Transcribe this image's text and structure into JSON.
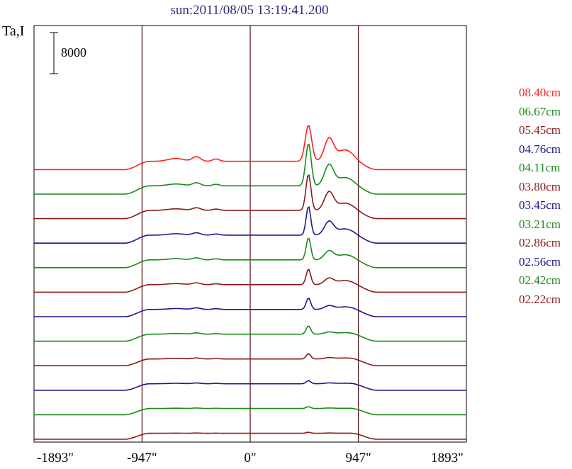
{
  "chart_data": {
    "type": "line",
    "title": "sun:2011/08/05 13:19:41.200",
    "ylabel": "Ta,I",
    "xlabel": "",
    "scale_bar_label": "8000",
    "x_ticks": [
      "-1893\"",
      "-947\"",
      "0\"",
      "947\"",
      "1893\""
    ],
    "x_tick_values": [
      -1893,
      -947,
      0,
      947,
      1893
    ],
    "vertical_lines_at": [
      -947,
      0,
      947
    ],
    "xlim": [
      -1893,
      1893
    ],
    "grid": false,
    "legend_position": "right",
    "series": [
      {
        "name": "08.40cm",
        "color": "#ff2020",
        "offset": 11,
        "disk": 1.6,
        "limbPeak": 0.9,
        "sharpPeak": 7.0,
        "sharpW": 28,
        "broadPeak": 4.3,
        "broadShoulder": 2.2
      },
      {
        "name": "06.67cm",
        "color": "#1a8a1a",
        "offset": 10,
        "disk": 1.6,
        "limbPeak": 0.6,
        "sharpPeak": 8.2,
        "sharpW": 24,
        "broadPeak": 4.0,
        "broadShoulder": 1.6
      },
      {
        "name": "05.45cm",
        "color": "#8b1a1a",
        "offset": 9,
        "disk": 1.6,
        "limbPeak": 0.5,
        "sharpPeak": 7.0,
        "sharpW": 22,
        "broadPeak": 3.5,
        "broadShoulder": 1.4
      },
      {
        "name": "04.76cm",
        "color": "#1a1a8b",
        "offset": 8,
        "disk": 1.55,
        "limbPeak": 0.45,
        "sharpPeak": 5.6,
        "sharpW": 20,
        "broadPeak": 2.6,
        "broadShoulder": 1.2
      },
      {
        "name": "04.11cm",
        "color": "#1a8a1a",
        "offset": 7,
        "disk": 1.5,
        "limbPeak": 0.4,
        "sharpPeak": 4.3,
        "sharpW": 20,
        "broadPeak": 1.7,
        "broadShoulder": 1.0
      },
      {
        "name": "03.80cm",
        "color": "#8b1a1a",
        "offset": 6,
        "disk": 1.45,
        "limbPeak": 0.35,
        "sharpPeak": 3.0,
        "sharpW": 20,
        "broadPeak": 1.2,
        "broadShoulder": 0.8
      },
      {
        "name": "03.45cm",
        "color": "#1a1a8b",
        "offset": 5,
        "disk": 1.4,
        "limbPeak": 0.3,
        "sharpPeak": 2.2,
        "sharpW": 20,
        "broadPeak": 0.7,
        "broadShoulder": 0.5
      },
      {
        "name": "03.21cm",
        "color": "#1a8a1a",
        "offset": 4,
        "disk": 1.35,
        "limbPeak": 0.25,
        "sharpPeak": 1.6,
        "sharpW": 20,
        "broadPeak": 0.4,
        "broadShoulder": 0.3
      },
      {
        "name": "02.86cm",
        "color": "#8b1a1a",
        "offset": 3,
        "disk": 1.3,
        "limbPeak": 0.2,
        "sharpPeak": 1.0,
        "sharpW": 20,
        "broadPeak": 0.25,
        "broadShoulder": 0.2
      },
      {
        "name": "02.56cm",
        "color": "#1a1a8b",
        "offset": 2,
        "disk": 1.25,
        "limbPeak": 0.15,
        "sharpPeak": 0.6,
        "sharpW": 20,
        "broadPeak": 0.15,
        "broadShoulder": 0.1
      },
      {
        "name": "02.42cm",
        "color": "#1a8a1a",
        "offset": 1,
        "disk": 1.2,
        "limbPeak": 0.1,
        "sharpPeak": 0.35,
        "sharpW": 20,
        "broadPeak": 0.1,
        "broadShoulder": 0.05
      },
      {
        "name": "02.22cm",
        "color": "#8b1a1a",
        "offset": 0,
        "disk": 1.15,
        "limbPeak": 0.05,
        "sharpPeak": 0.2,
        "sharpW": 20,
        "broadPeak": 0.05,
        "broadShoulder": 0.03
      }
    ]
  }
}
